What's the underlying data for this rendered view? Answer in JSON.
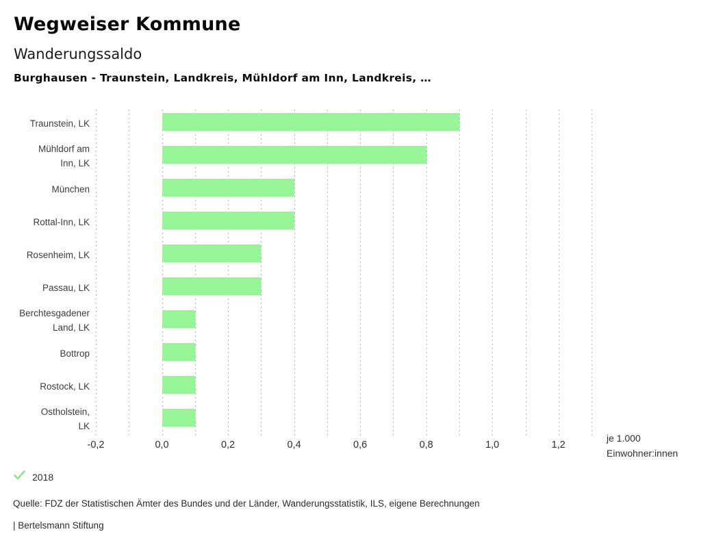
{
  "header": {
    "app_title": "Wegweiser Kommune",
    "chart_title": "Wanderungssaldo",
    "comparison": "Burghausen - Traunstein, Landkreis, Mühldorf am Inn, Landkreis, …"
  },
  "chart_data": {
    "type": "bar",
    "orientation": "horizontal",
    "title": "Wanderungssaldo",
    "categories": [
      "Traunstein, LK",
      "Mühldorf am Inn, LK",
      "München",
      "Rottal-Inn, LK",
      "Rosenheim, LK",
      "Passau, LK",
      "Berchtesgadener Land, LK",
      "Bottrop",
      "Rostock, LK",
      "Ostholstein, LK"
    ],
    "category_display_lines": [
      "Traunstein, LK",
      "Mühldorf am\nInn, LK",
      "München",
      "Rottal-Inn, LK",
      "Rosenheim, LK",
      "Passau, LK",
      "Berchtesgadener\nLand, LK",
      "Bottrop",
      "Rostock, LK",
      "Ostholstein,\nLK"
    ],
    "series": [
      {
        "name": "2018",
        "values": [
          0.9,
          0.8,
          0.4,
          0.4,
          0.3,
          0.3,
          0.1,
          0.1,
          0.1,
          0.1
        ]
      }
    ],
    "xlabel": "je 1.000 Einwohner:innen",
    "xlim": [
      -0.2,
      1.3
    ],
    "xtick_values": [
      -0.2,
      0.0,
      0.2,
      0.4,
      0.6,
      0.8,
      1.0,
      1.2
    ],
    "xtick_labels": [
      "-0,2",
      "0,0",
      "0,2",
      "0,4",
      "0,6",
      "0,8",
      "1,0",
      "1,2"
    ],
    "grid_step": 0.1,
    "grid": true,
    "legend_position": "bottom-left",
    "bar_color": "#97f497"
  },
  "axis_unit": {
    "line1": "je 1.000",
    "line2": "Einwohner:innen"
  },
  "legend": {
    "year_label": "2018",
    "check_color": "#8ce28c"
  },
  "footer": {
    "source": "Quelle: FDZ der Statistischen Ämter des Bundes und der Länder, Wanderungsstatistik, ILS, eigene Berechnungen",
    "attribution": "| Bertelsmann Stiftung"
  },
  "colors": {
    "bar": "#97f497",
    "gridline": "#b9b9b9",
    "title_text": "#0a0a0a",
    "body_text": "#333333",
    "background": "#ffffff"
  }
}
